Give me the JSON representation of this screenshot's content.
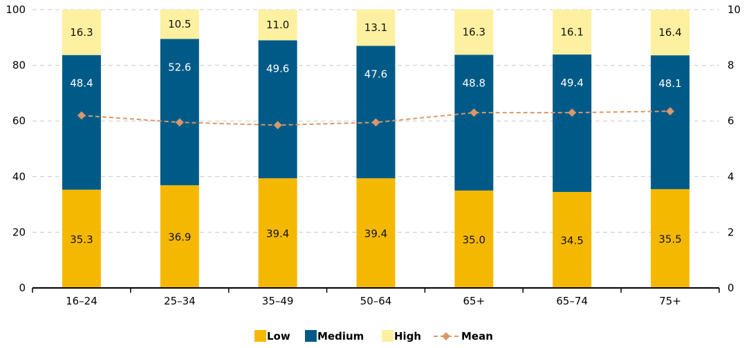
{
  "chart_data": {
    "type": "bar",
    "stacked": true,
    "categories": [
      "16–24",
      "25–34",
      "35–49",
      "50–64",
      "65+",
      "65–74",
      "75+"
    ],
    "series": [
      {
        "name": "Low",
        "color": "#F5B800",
        "values": [
          35.3,
          36.9,
          39.4,
          39.4,
          35.0,
          34.5,
          35.5
        ],
        "labels": [
          "35.3",
          "36.9",
          "39.4",
          "39.4",
          "35.0",
          "34.5",
          "35.5"
        ]
      },
      {
        "name": "Medium",
        "color": "#005A87",
        "values": [
          48.4,
          52.6,
          49.6,
          47.6,
          48.8,
          49.4,
          48.1
        ],
        "labels": [
          "48.4",
          "52.6",
          "49.6",
          "47.6",
          "48.8",
          "49.4",
          "48.1"
        ]
      },
      {
        "name": "High",
        "color": "#FDF0A0",
        "values": [
          16.3,
          10.5,
          11.0,
          13.1,
          16.3,
          16.1,
          16.4
        ],
        "labels": [
          "16.3",
          "10.5",
          "11.0",
          "13.1",
          "16.3",
          "16.1",
          "16.4"
        ]
      }
    ],
    "line_series": {
      "name": "Mean",
      "color": "#D9976A",
      "axis": "right",
      "values": [
        6.2,
        5.95,
        5.85,
        5.95,
        6.3,
        6.3,
        6.35
      ]
    },
    "left_axis": {
      "ylim": [
        0,
        100
      ],
      "ticks": [
        "0",
        "20",
        "40",
        "60",
        "80",
        "100"
      ]
    },
    "right_axis": {
      "ylim": [
        0,
        10
      ],
      "ticks": [
        "0",
        "2",
        "4",
        "6",
        "8",
        "10"
      ]
    },
    "grid": "dashed horizontal",
    "legend_position": "bottom"
  }
}
